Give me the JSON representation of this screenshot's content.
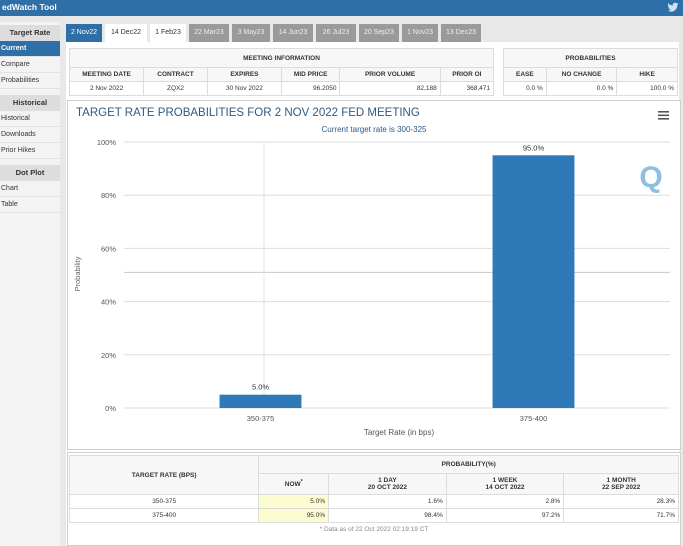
{
  "app": {
    "title": "edWatch Tool"
  },
  "sidebar": {
    "target_rate_header": "Target Rate",
    "target_rate_items": [
      "Current",
      "Compare",
      "Probabilities"
    ],
    "historical_header": "Historical",
    "historical_items": [
      "Historical",
      "Downloads",
      "Prior Hikes"
    ],
    "dotplot_header": "Dot Plot",
    "dotplot_items": [
      "Chart",
      "Table"
    ]
  },
  "tabs": [
    "2 Nov22",
    "14 Dec22",
    "1 Feb23",
    "22 Mar23",
    "3 May23",
    "14 Jun23",
    "26 Jul23",
    "20 Sep23",
    "1 Nov23",
    "13 Dec23"
  ],
  "meeting_info": {
    "title": "MEETING INFORMATION",
    "headers": [
      "MEETING DATE",
      "CONTRACT",
      "EXPIRES",
      "MID PRICE",
      "PRIOR VOLUME",
      "PRIOR OI"
    ],
    "values": [
      "2 Nov 2022",
      "ZQX2",
      "30 Nov 2022",
      "96.2050",
      "82,188",
      "368,471"
    ]
  },
  "probabilities": {
    "title": "PROBABILITIES",
    "headers": [
      "EASE",
      "NO CHANGE",
      "HIKE"
    ],
    "values": [
      "0.0 %",
      "0.0 %",
      "100.0 %"
    ]
  },
  "chart_header": {
    "title": "TARGET RATE PROBABILITIES FOR 2 NOV 2022 FED MEETING",
    "subtitle": "Current target rate is 300-325"
  },
  "colors": {
    "accent": "#2e6fa8",
    "bar": "#2e7ab8",
    "inactive_tab": "#9a9a9a"
  },
  "chart_data": {
    "type": "bar",
    "title": "TARGET RATE PROBABILITIES FOR 2 NOV 2022 FED MEETING",
    "subtitle": "Current target rate is 300-325",
    "categories": [
      "350-375",
      "375-400"
    ],
    "values": [
      5.0,
      95.0
    ],
    "value_labels": [
      "5.0%",
      "95.0%"
    ],
    "xlabel": "Target Rate (in bps)",
    "ylabel": "Probability",
    "ylim": [
      0,
      100
    ],
    "ytick_labels": [
      "0%",
      "20%",
      "40%",
      "60%",
      "80%",
      "100%"
    ],
    "grid": true,
    "legend": "none"
  },
  "bottom_table": {
    "target_header": "TARGET RATE (BPS)",
    "prob_header": "PROBABILITY(%)",
    "col_now": "NOW",
    "col_now_mark": "*",
    "col_1day": [
      "1 DAY",
      "20 OCT 2022"
    ],
    "col_1week": [
      "1 WEEK",
      "14 OCT 2022"
    ],
    "col_1month": [
      "1 MONTH",
      "22 SEP 2022"
    ],
    "rows": [
      {
        "rate": "350-375",
        "now": "5.0%",
        "day": "1.6%",
        "week": "2.8%",
        "month": "28.3%"
      },
      {
        "rate": "375-400",
        "now": "95.0%",
        "day": "98.4%",
        "week": "97.2%",
        "month": "71.7%"
      }
    ],
    "footnote": "* Data as of 22 Oct 2022 02:19:19 CT"
  },
  "watermark": {
    "text": "Q"
  }
}
